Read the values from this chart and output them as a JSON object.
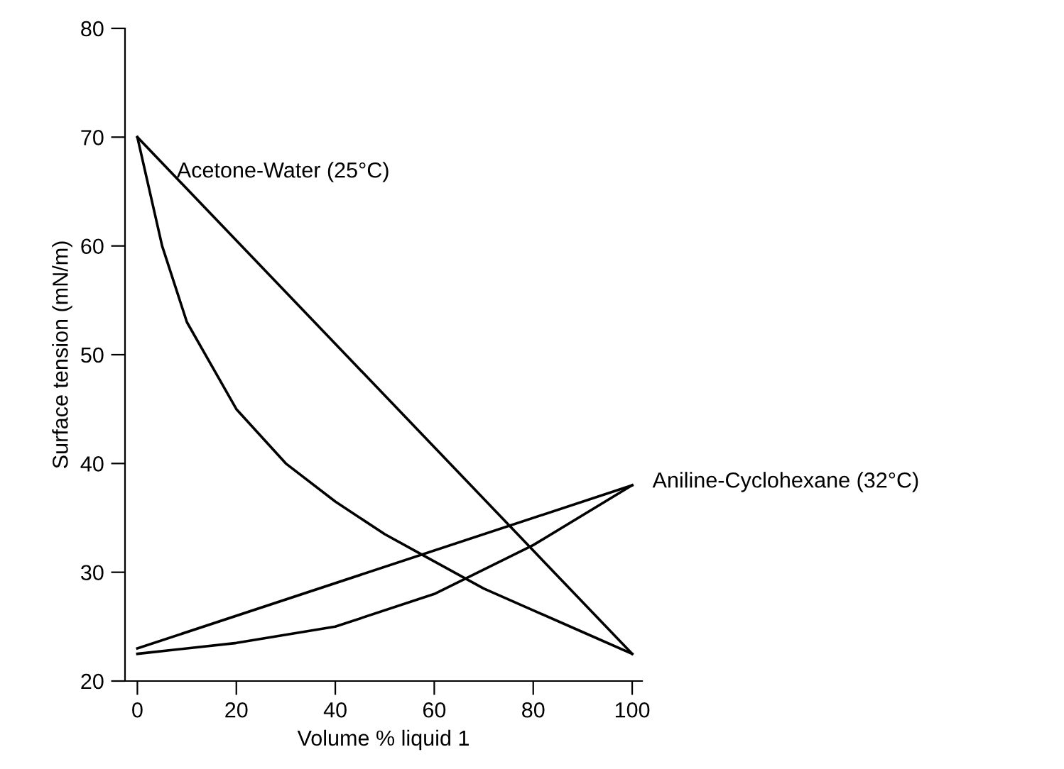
{
  "chart_data": {
    "type": "line",
    "xlabel": "Volume % liquid 1",
    "ylabel": "Surface tension (mN/m)",
    "xlim": [
      -2.5,
      102
    ],
    "ylim": [
      20,
      80
    ],
    "xticks": [
      0,
      20,
      40,
      60,
      80,
      100
    ],
    "yticks": [
      20,
      30,
      40,
      50,
      60,
      70,
      80
    ],
    "grid": false,
    "legend": false,
    "marker": "none",
    "line_style": "solid",
    "series": [
      {
        "color": "#000000",
        "x": [
          0,
          100
        ],
        "values": [
          70,
          22.5
        ]
      },
      {
        "color": "#000000",
        "x": [
          0,
          5,
          10,
          20,
          30,
          40,
          50,
          60,
          70,
          80,
          90,
          100
        ],
        "values": [
          70,
          60,
          53,
          45,
          40,
          36.5,
          33.5,
          31,
          28.5,
          26.5,
          24.5,
          22.5
        ]
      },
      {
        "color": "#000000",
        "x": [
          0,
          100
        ],
        "values": [
          23,
          38
        ]
      },
      {
        "color": "#000000",
        "x": [
          0,
          20,
          40,
          60,
          80,
          100
        ],
        "values": [
          22.5,
          23.5,
          25,
          28,
          32.5,
          38
        ]
      }
    ],
    "annotations": [
      "Acetone-Water (25°C)",
      "Aniline-Cyclohexane (32°C)"
    ]
  }
}
